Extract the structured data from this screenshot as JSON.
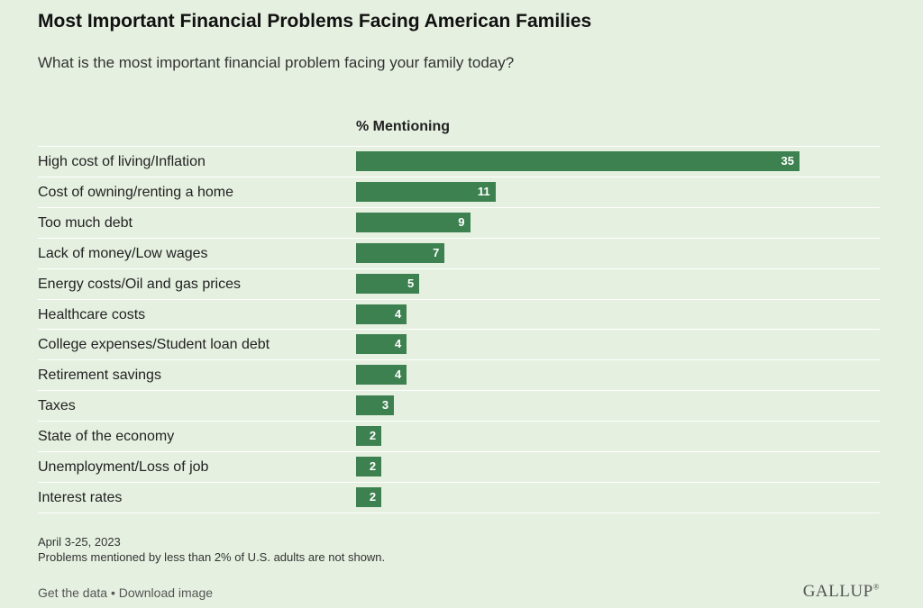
{
  "chart_data": {
    "type": "bar",
    "orientation": "horizontal",
    "title": "Most Important Financial Problems Facing American Families",
    "subtitle": "What is the most important financial problem facing your family today?",
    "value_header": "% Mentioning",
    "categories": [
      "High cost of living/Inflation",
      "Cost of owning/renting a home",
      "Too much debt",
      "Lack of money/Low wages",
      "Energy costs/Oil and gas prices",
      "Healthcare costs",
      "College expenses/Student loan debt",
      "Retirement savings",
      "Taxes",
      "State of the economy",
      "Unemployment/Loss of job",
      "Interest rates"
    ],
    "values": [
      35,
      11,
      9,
      7,
      5,
      4,
      4,
      4,
      3,
      2,
      2,
      2
    ],
    "xlim": [
      0,
      35
    ],
    "bar_color": "#3d8150",
    "value_labels": "inside-end",
    "grid": false,
    "legend": "none"
  },
  "notes": {
    "date": "April 3-25, 2023",
    "footnote": "Problems mentioned by less than 2% of U.S. adults are not shown."
  },
  "footer": {
    "get_data": "Get the data",
    "separator": "•",
    "download": "Download image",
    "logo": "GALLUP",
    "logo_mark": "®"
  }
}
